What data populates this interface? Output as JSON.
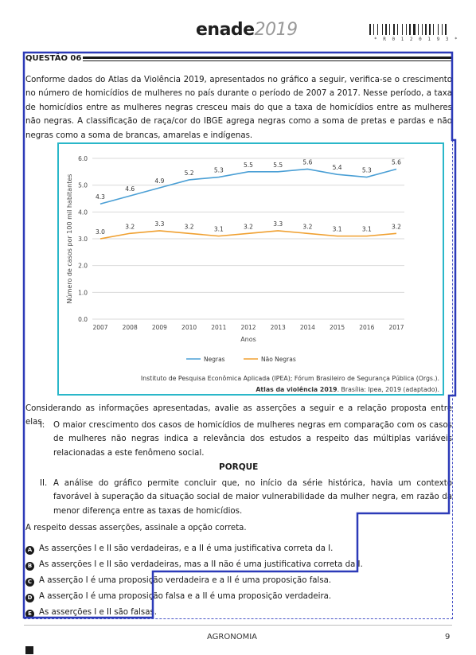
{
  "header": {
    "logo_brand": "enade",
    "logo_year": "2019",
    "barcode_number": "* R 0 1 2 0 1 9 3 *"
  },
  "question": {
    "title": "QUESTÃO 06",
    "intro": "Conforme dados do Atlas da Violência 2019, apresentados no gráfico a seguir, verifica-se o crescimento no número de homicídios de mulheres no país durante o período de 2007 a 2017. Nesse período, a taxa de homicídios entre as mulheres negras cresceu mais do que a taxa de homicídios entre as mulheres não negras. A classificação de raça/cor do IBGE agrega negras como a soma de pretas e pardas e não negras como a soma de brancas, amarelas e indígenas.",
    "source_line1": "Instituto de Pesquisa Econômica Aplicada (IPEA); Fórum Brasileiro de Segurança Pública (Orgs.).",
    "source_title": "Atlas da violência 2019",
    "source_rest": ". Brasília: Ipea, 2019 (adaptado).",
    "prompt": "Considerando as informações apresentadas, avalie as asserções a seguir e a relação proposta entre elas.",
    "assertion1_num": "I.",
    "assertion1": "O maior crescimento dos casos de homicídios de mulheres negras em comparação com os casos de mulheres não negras indica a relevância dos estudos a respeito das múltiplas variáveis relacionadas a este fenômeno social.",
    "porque": "PORQUE",
    "assertion2_num": "II.",
    "assertion2": "A análise do gráfico permite concluir que, no início da série histórica, havia um contexto favorável à superação da situação social de maior vulnerabilidade da mulher negra, em razão da menor diferença entre as taxas de homicídios.",
    "instruction": "A respeito dessas asserções, assinale a opção correta.",
    "options": [
      {
        "letter": "A",
        "text": "As asserções I e II são verdadeiras, e a II é uma justificativa correta da I."
      },
      {
        "letter": "B",
        "text": "As asserções I e II são verdadeiras, mas a II não é uma justificativa correta da I."
      },
      {
        "letter": "C",
        "text": "A asserção I é uma proposição verdadeira e a II é uma proposição falsa."
      },
      {
        "letter": "D",
        "text": "A asserção I é uma proposição falsa e a II é uma proposição verdadeira."
      },
      {
        "letter": "E",
        "text": "As asserções I e II são falsas."
      }
    ]
  },
  "chart_data": {
    "type": "line",
    "x": [
      "2007",
      "2008",
      "2009",
      "2010",
      "2011",
      "2012",
      "2013",
      "2014",
      "2015",
      "2016",
      "2017"
    ],
    "series": [
      {
        "name": "Negras",
        "color": "#4a9fd5",
        "values": [
          4.3,
          4.6,
          4.9,
          5.2,
          5.3,
          5.5,
          5.5,
          5.6,
          5.4,
          5.3,
          5.6
        ]
      },
      {
        "name": "Não Negras",
        "color": "#f0a030",
        "values": [
          3.0,
          3.2,
          3.3,
          3.2,
          3.1,
          3.2,
          3.3,
          3.2,
          3.1,
          3.1,
          3.2
        ]
      }
    ],
    "ylim": [
      0.0,
      6.0
    ],
    "yticks": [
      "0.0",
      "1.0",
      "2.0",
      "3.0",
      "4.0",
      "5.0",
      "6.0"
    ],
    "xlabel": "Anos",
    "ylabel": "Número de casos por 100 mil habitantes",
    "grid": true,
    "legend": "bottom-center"
  },
  "footer": {
    "subject": "AGRONOMIA",
    "page": "9"
  }
}
